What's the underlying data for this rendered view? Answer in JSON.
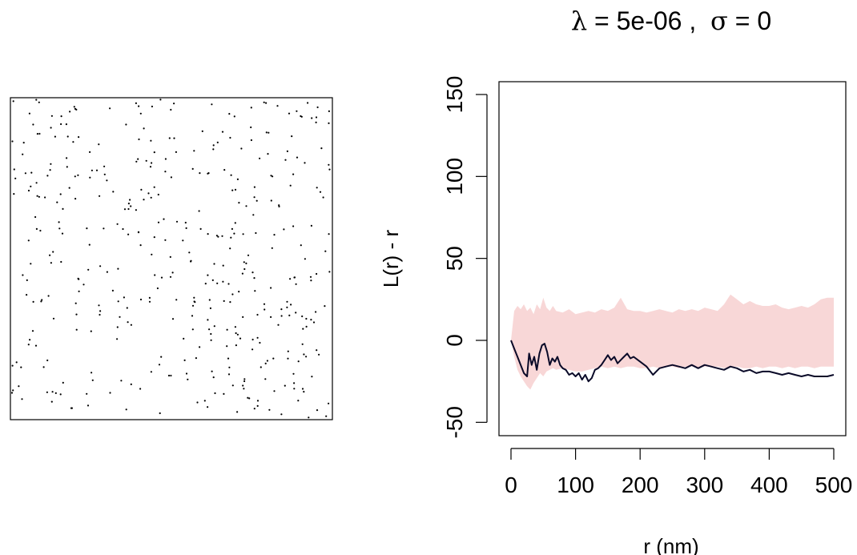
{
  "chart_data": [
    {
      "type": "scatter",
      "title": "",
      "xlabel": "",
      "ylabel": "",
      "axes_visible": false,
      "box": true,
      "point_count": 420,
      "point_style": "small black dots, spatially random",
      "seed": 7
    },
    {
      "type": "line",
      "title_parts": {
        "lambda_symbol": "λ",
        "lambda_eq": " = 5e-06",
        "sep": " ,  ",
        "sigma_symbol": "σ",
        "sigma_eq": " = 0"
      },
      "xlabel": "r (nm)",
      "ylabel": "L(r) - r",
      "xlim": [
        0,
        500
      ],
      "ylim": [
        -60,
        160
      ],
      "xticks": [
        "0",
        "100",
        "200",
        "300",
        "400",
        "500"
      ],
      "yticks": [
        "-50",
        "0",
        "50",
        "100",
        "150"
      ],
      "xtick_values": [
        0,
        100,
        200,
        300,
        400,
        500
      ],
      "ytick_values": [
        -50,
        0,
        50,
        100,
        150
      ],
      "envelope": {
        "color": "#f8d7d7",
        "x": [
          0,
          5,
          10,
          15,
          20,
          25,
          30,
          35,
          40,
          45,
          50,
          55,
          60,
          65,
          70,
          80,
          90,
          100,
          110,
          120,
          130,
          140,
          150,
          160,
          170,
          180,
          190,
          200,
          210,
          220,
          230,
          240,
          250,
          260,
          270,
          280,
          290,
          300,
          310,
          320,
          330,
          340,
          350,
          360,
          370,
          380,
          390,
          400,
          410,
          420,
          430,
          440,
          450,
          460,
          470,
          480,
          490,
          500
        ],
        "upper": [
          0,
          18,
          21,
          19,
          22,
          18,
          20,
          16,
          22,
          19,
          26,
          20,
          18,
          21,
          18,
          17,
          19,
          16,
          17,
          18,
          17,
          19,
          18,
          20,
          26,
          19,
          18,
          18,
          17,
          18,
          19,
          18,
          17,
          19,
          18,
          19,
          18,
          20,
          19,
          18,
          22,
          28,
          25,
          22,
          24,
          22,
          21,
          21,
          22,
          20,
          19,
          20,
          21,
          20,
          22,
          25,
          26,
          26
        ],
        "lower": [
          0,
          -10,
          -18,
          -22,
          -25,
          -28,
          -30,
          -26,
          -23,
          -20,
          -22,
          -19,
          -18,
          -17,
          -18,
          -17,
          -18,
          -19,
          -19,
          -18,
          -17,
          -16,
          -17,
          -16,
          -17,
          -16,
          -16,
          -17,
          -17,
          -16,
          -17,
          -16,
          -16,
          -17,
          -16,
          -16,
          -17,
          -16,
          -16,
          -16,
          -17,
          -16,
          -16,
          -17,
          -17,
          -16,
          -17,
          -16,
          -16,
          -17,
          -16,
          -17,
          -16,
          -16,
          -17,
          -16,
          -16,
          -16
        ]
      },
      "series": [
        {
          "color": "#0a0a28",
          "x": [
            0,
            5,
            10,
            15,
            20,
            25,
            28,
            32,
            36,
            40,
            44,
            48,
            52,
            56,
            60,
            64,
            68,
            72,
            76,
            80,
            85,
            90,
            95,
            100,
            105,
            110,
            115,
            120,
            125,
            130,
            135,
            140,
            145,
            150,
            155,
            160,
            165,
            170,
            175,
            180,
            185,
            190,
            200,
            210,
            220,
            230,
            240,
            250,
            260,
            270,
            280,
            290,
            300,
            310,
            320,
            330,
            340,
            350,
            360,
            370,
            380,
            390,
            400,
            410,
            420,
            430,
            440,
            450,
            460,
            470,
            480,
            490,
            500
          ],
          "y": [
            0,
            -5,
            -10,
            -15,
            -20,
            -22,
            -8,
            -15,
            -10,
            -18,
            -8,
            -3,
            -2,
            -7,
            -15,
            -11,
            -13,
            -10,
            -15,
            -17,
            -18,
            -21,
            -20,
            -22,
            -20,
            -24,
            -21,
            -25,
            -23,
            -18,
            -17,
            -15,
            -12,
            -9,
            -12,
            -10,
            -14,
            -12,
            -10,
            -8,
            -11,
            -10,
            -13,
            -16,
            -21,
            -17,
            -16,
            -15,
            -16,
            -17,
            -15,
            -17,
            -15,
            -16,
            -17,
            -18,
            -16,
            -17,
            -19,
            -18,
            -20,
            -19,
            -19,
            -20,
            -21,
            -20,
            -21,
            -22,
            -21,
            -22,
            -22,
            -22,
            -21
          ]
        }
      ]
    }
  ]
}
